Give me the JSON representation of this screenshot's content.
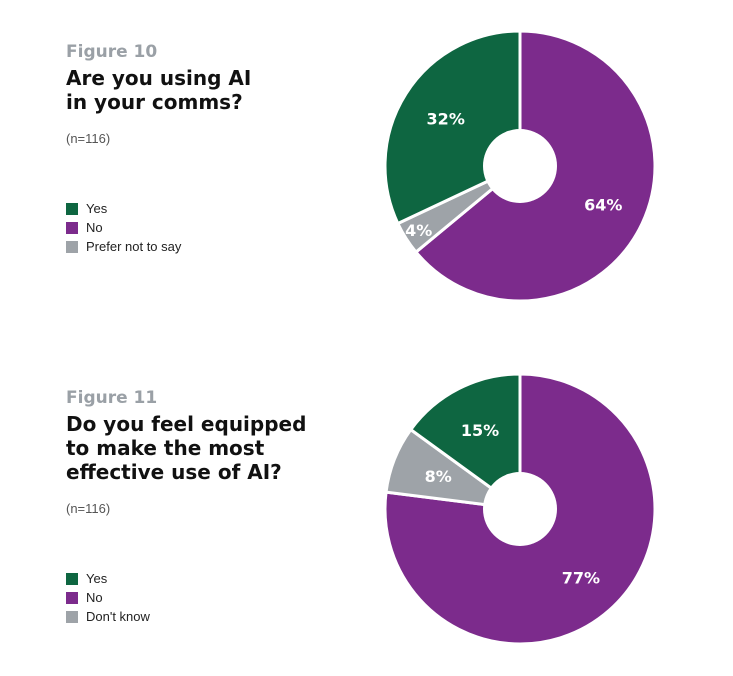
{
  "chart_data": [
    {
      "type": "pie",
      "figure_label": "Figure 10",
      "title_lines": [
        "Are you using AI",
        "in your comms?"
      ],
      "sample": "(n=116)",
      "categories": [
        "Yes",
        "No",
        "Prefer not to say"
      ],
      "values": [
        32,
        64,
        4
      ],
      "value_labels": [
        "32%",
        "64%",
        "4%"
      ],
      "colors": [
        "#0e6641",
        "#7c2b8c",
        "#9ea3a8"
      ],
      "slice_order": [
        "No",
        "Prefer not to say",
        "Yes"
      ],
      "legend_position": "left"
    },
    {
      "type": "pie",
      "figure_label": "Figure 11",
      "title_lines": [
        "Do you feel equipped",
        "to make the most",
        "effective use of AI?"
      ],
      "sample": "(n=116)",
      "categories": [
        "Yes",
        "No",
        "Don't know"
      ],
      "values": [
        15,
        77,
        8
      ],
      "value_labels": [
        "15%",
        "77%",
        "8%"
      ],
      "colors": [
        "#0e6641",
        "#7c2b8c",
        "#9ea3a8"
      ],
      "slice_order": [
        "No",
        "Don't know",
        "Yes"
      ],
      "legend_position": "left"
    }
  ]
}
